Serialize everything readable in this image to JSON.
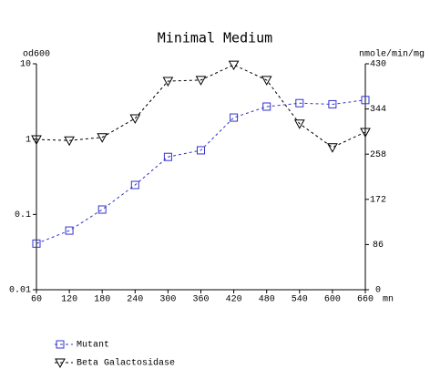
{
  "chart_data": {
    "type": "line",
    "title": "Minimal Medium",
    "x_label": "mn",
    "y_label": "od600",
    "y2_label": "nmole/min/mg",
    "x": [
      60,
      120,
      180,
      240,
      300,
      360,
      420,
      480,
      540,
      600,
      660
    ],
    "xlim": [
      60,
      660
    ],
    "xticks": [
      60,
      120,
      180,
      240,
      300,
      360,
      420,
      480,
      540,
      600,
      660
    ],
    "ylim": [
      0.01,
      10
    ],
    "yticks": [
      0.01,
      0.1,
      1,
      10
    ],
    "y_scale": "log",
    "y2lim": [
      0,
      430
    ],
    "y2ticks": [
      0,
      86,
      172,
      258,
      344,
      430
    ],
    "legend": "bottom-left",
    "series": [
      {
        "name": "Mutant",
        "color": "#3333cc",
        "marker": "square",
        "values": [
          0.041,
          0.061,
          0.116,
          0.246,
          0.58,
          0.71,
          1.93,
          2.7,
          3.0,
          2.9,
          3.3
        ]
      },
      {
        "name": "Beta Galactosidase",
        "color": "#000000",
        "marker": "triangle-down",
        "axis": "y2",
        "values": [
          286,
          284,
          290,
          326,
          397,
          399,
          428,
          399,
          316,
          271,
          300
        ]
      }
    ]
  }
}
